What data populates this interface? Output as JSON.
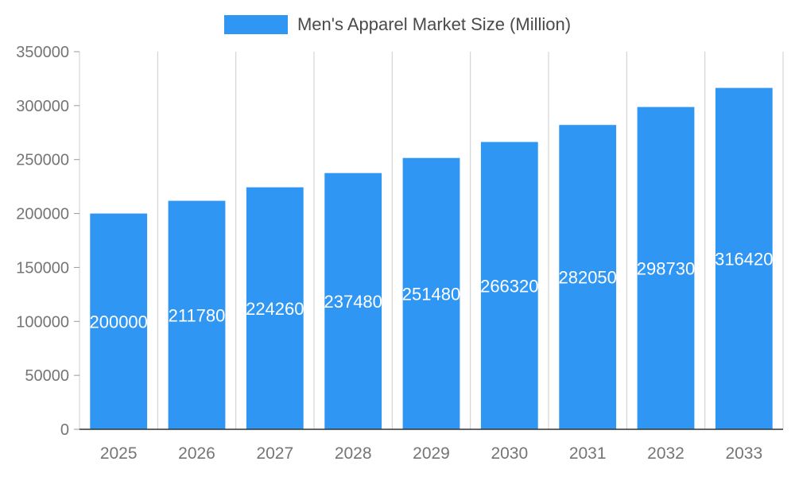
{
  "chart": {
    "title": "Men's Apparel Market Size (Million)"
  },
  "chart_data": {
    "type": "bar",
    "title": "Men's Apparel Market Size (Million)",
    "categories": [
      "2025",
      "2026",
      "2027",
      "2028",
      "2029",
      "2030",
      "2031",
      "2032",
      "2033"
    ],
    "values": [
      200000,
      211780,
      224260,
      237480,
      251480,
      266320,
      282050,
      298730,
      316420
    ],
    "xlabel": "",
    "ylabel": "",
    "ylim": [
      0,
      350000
    ],
    "ytick_step": 50000,
    "grid": "vertical",
    "legend_position": "top-center",
    "bar_color": "#2f96f3",
    "bar_label_color": "#ffffff",
    "axis_text_color": "#757575",
    "grid_color": "#cccccc",
    "baseline_color": "#333333",
    "tick_mark_color": "#999999"
  }
}
